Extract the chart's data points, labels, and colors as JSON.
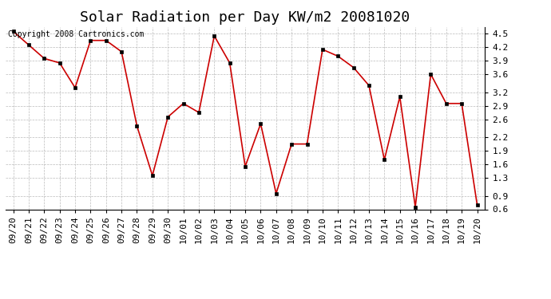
{
  "title": "Solar Radiation per Day KW/m2 20081020",
  "copyright_text": "Copyright 2008 Cartronics.com",
  "dates": [
    "09/20",
    "09/21",
    "09/22",
    "09/23",
    "09/24",
    "09/25",
    "09/26",
    "09/27",
    "09/28",
    "09/29",
    "09/30",
    "10/01",
    "10/02",
    "10/03",
    "10/04",
    "10/05",
    "10/06",
    "10/07",
    "10/08",
    "10/09",
    "10/10",
    "10/11",
    "10/12",
    "10/13",
    "10/14",
    "10/15",
    "10/16",
    "10/17",
    "10/18",
    "10/19",
    "10/20"
  ],
  "values": [
    4.55,
    4.25,
    3.95,
    3.85,
    3.3,
    4.35,
    4.35,
    4.1,
    2.45,
    1.35,
    2.65,
    2.95,
    2.75,
    4.45,
    3.85,
    1.55,
    2.5,
    0.95,
    2.05,
    2.05,
    4.15,
    4.0,
    3.75,
    3.35,
    1.7,
    3.1,
    0.65,
    3.6,
    2.95,
    2.95,
    0.7
  ],
  "line_color": "#cc0000",
  "marker_color": "#000000",
  "bg_color": "#ffffff",
  "grid_color": "#aaaaaa",
  "ylim": [
    0.6,
    4.65
  ],
  "yticks": [
    0.6,
    0.9,
    1.3,
    1.6,
    1.9,
    2.2,
    2.6,
    2.9,
    3.2,
    3.6,
    3.9,
    4.2,
    4.5
  ],
  "title_fontsize": 13,
  "tick_fontsize": 8,
  "copyright_fontsize": 7
}
